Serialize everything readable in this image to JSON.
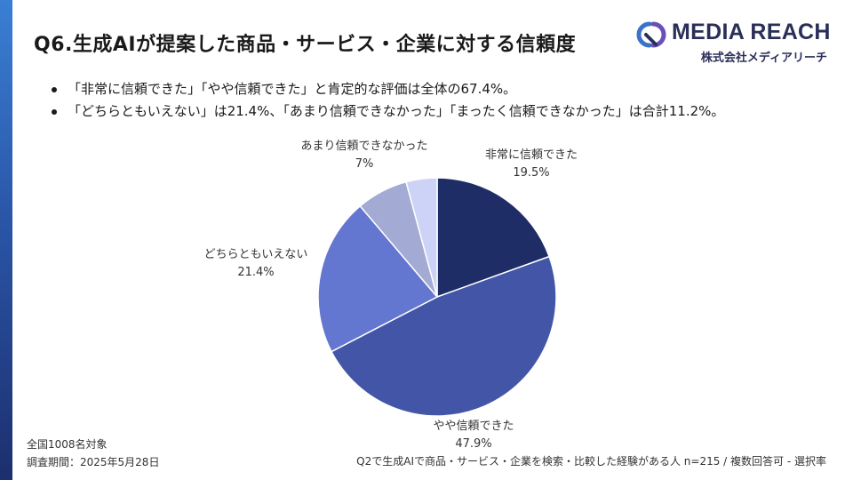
{
  "header": {
    "title": "Q6.生成AIが提案した商品・サービス・企業に対する信頼度"
  },
  "logo": {
    "name": "MEDIA REACH",
    "subtitle": "株式会社メディアリーチ",
    "icon": "media-reach-logo-mark"
  },
  "bullets": [
    "「非常に信頼できた」「やや信頼できた」と肯定的な評価は全体の67.4%。",
    "「どちらともいえない」は21.4%、「あまり信頼できなかった」「まったく信頼できなかった」は合計11.2%。"
  ],
  "chart_data": {
    "type": "pie",
    "title": "",
    "start_angle_deg": 0,
    "direction": "clockwise",
    "slices": [
      {
        "label": "非常に信頼できた",
        "value": 19.5,
        "value_label": "19.5%",
        "color": "#1f2d66"
      },
      {
        "label": "やや信頼できた",
        "value": 47.9,
        "value_label": "47.9%",
        "color": "#4355a6"
      },
      {
        "label": "どちらともいえない",
        "value": 21.4,
        "value_label": "21.4%",
        "color": "#6477d0"
      },
      {
        "label": "あまり信頼できなかった",
        "value": 7.0,
        "value_label": "7%",
        "color": "#a3aad3"
      },
      {
        "label": "まったく信頼できなかった",
        "value": 4.2,
        "value_label": "",
        "color": "#cdd3f6"
      }
    ]
  },
  "footer": {
    "target": "全国1008名対象",
    "period": "調査期間：2025年5月28日",
    "note": "Q2で生成AIで商品・サービス・企業を検索・比較した経験がある人 n=215 / 複数回答可 - 選択率"
  }
}
